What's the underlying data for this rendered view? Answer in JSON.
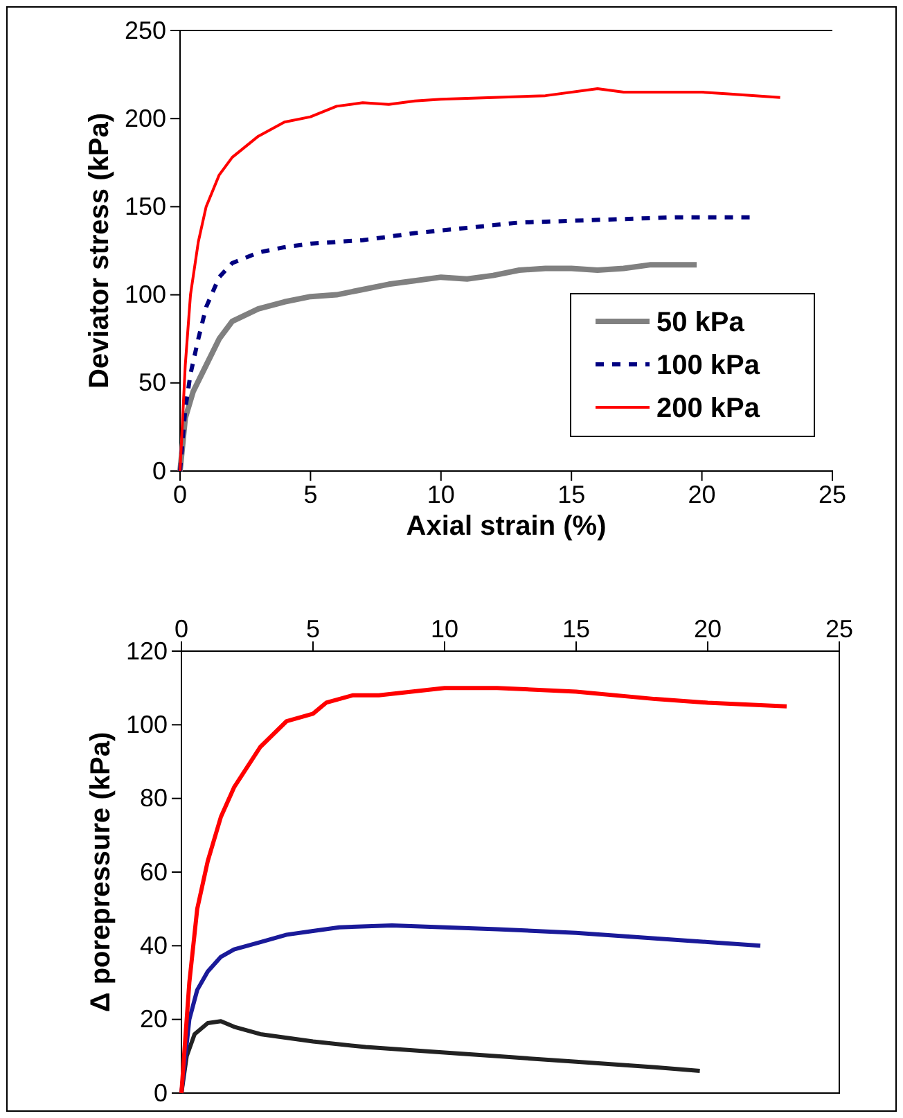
{
  "chart_data": [
    {
      "type": "line",
      "xlabel": "Axial strain (%)",
      "ylabel": "Deviator stress (kPa)",
      "xlim": [
        0,
        25
      ],
      "xticks": [
        0,
        5,
        10,
        15,
        20,
        25
      ],
      "ylim": [
        0,
        250
      ],
      "yticks": [
        0,
        50,
        100,
        150,
        200,
        250
      ],
      "grid": false,
      "legend": "bottom right",
      "series": [
        {
          "name": "50 kPa",
          "color": "#808080",
          "line_style": "solid",
          "x": [
            0,
            0.2,
            0.5,
            1,
            1.5,
            2,
            3,
            4,
            5,
            6,
            7,
            8,
            9,
            10,
            11,
            12,
            13,
            14,
            15,
            16,
            17,
            18,
            19,
            19.8
          ],
          "values": [
            0,
            30,
            45,
            60,
            75,
            85,
            92,
            96,
            99,
            100,
            103,
            106,
            108,
            110,
            109,
            111,
            114,
            115,
            115,
            114,
            115,
            117,
            117,
            117
          ]
        },
        {
          "name": "100 kPa",
          "color": "#000080",
          "line_style": "dashed",
          "x": [
            0,
            0.2,
            0.4,
            0.7,
            1,
            1.5,
            2,
            3,
            4,
            5,
            7,
            9,
            11,
            13,
            15,
            17,
            19,
            22
          ],
          "values": [
            0,
            35,
            55,
            75,
            93,
            110,
            118,
            124,
            127,
            129,
            131,
            135,
            138,
            141,
            142,
            143,
            144,
            144
          ]
        },
        {
          "name": "200 kPa",
          "color": "#ff0000",
          "line_style": "solid",
          "x": [
            0,
            0.2,
            0.4,
            0.7,
            1,
            1.5,
            2,
            3,
            4,
            5,
            6,
            7,
            8,
            9,
            10,
            12,
            14,
            16,
            17,
            20,
            21,
            23
          ],
          "values": [
            0,
            60,
            100,
            130,
            150,
            168,
            178,
            190,
            198,
            201,
            207,
            209,
            208,
            210,
            211,
            212,
            213,
            217,
            215,
            215,
            214,
            212
          ]
        }
      ]
    },
    {
      "type": "line",
      "ylabel": "Δ porepressure (kPa)",
      "xlim": [
        0,
        25
      ],
      "xticks": [
        0,
        5,
        10,
        15,
        20,
        25
      ],
      "x2lim": [
        0,
        25
      ],
      "x2ticks": [
        0,
        5,
        10,
        15,
        20,
        25
      ],
      "tick_labels": "y",
      "ylim": [
        0,
        120
      ],
      "yticks": [
        0,
        20,
        40,
        60,
        80,
        100,
        120
      ],
      "grid": false,
      "legend": false,
      "series": [
        {
          "color": "#222222",
          "line_style": "solid",
          "x": [
            0,
            0.2,
            0.5,
            1,
            1.5,
            2,
            3,
            4,
            5,
            7,
            10,
            12,
            15,
            18,
            19.7
          ],
          "values": [
            0,
            10,
            16,
            19,
            19.5,
            18,
            16,
            15,
            14,
            12.5,
            11,
            10,
            8.5,
            7,
            6
          ]
        },
        {
          "color": "#1a1a99",
          "line_style": "solid",
          "x": [
            0,
            0.3,
            0.6,
            1,
            1.5,
            2,
            3,
            4,
            5,
            6,
            8,
            10,
            12,
            15,
            18,
            20,
            22
          ],
          "values": [
            0,
            20,
            28,
            33,
            37,
            39,
            41,
            43,
            44,
            45,
            45.5,
            45,
            44.5,
            43.5,
            42,
            41,
            40
          ]
        },
        {
          "color": "#ff0000",
          "line_style": "solid",
          "x": [
            0,
            0.3,
            0.6,
            1,
            1.5,
            2,
            3,
            4,
            5,
            5.5,
            6.5,
            7.5,
            10,
            12,
            15,
            18,
            20,
            23
          ],
          "values": [
            0,
            30,
            50,
            63,
            75,
            83,
            94,
            101,
            103,
            106,
            108,
            108,
            110,
            110,
            109,
            107,
            106,
            105
          ]
        }
      ]
    }
  ]
}
